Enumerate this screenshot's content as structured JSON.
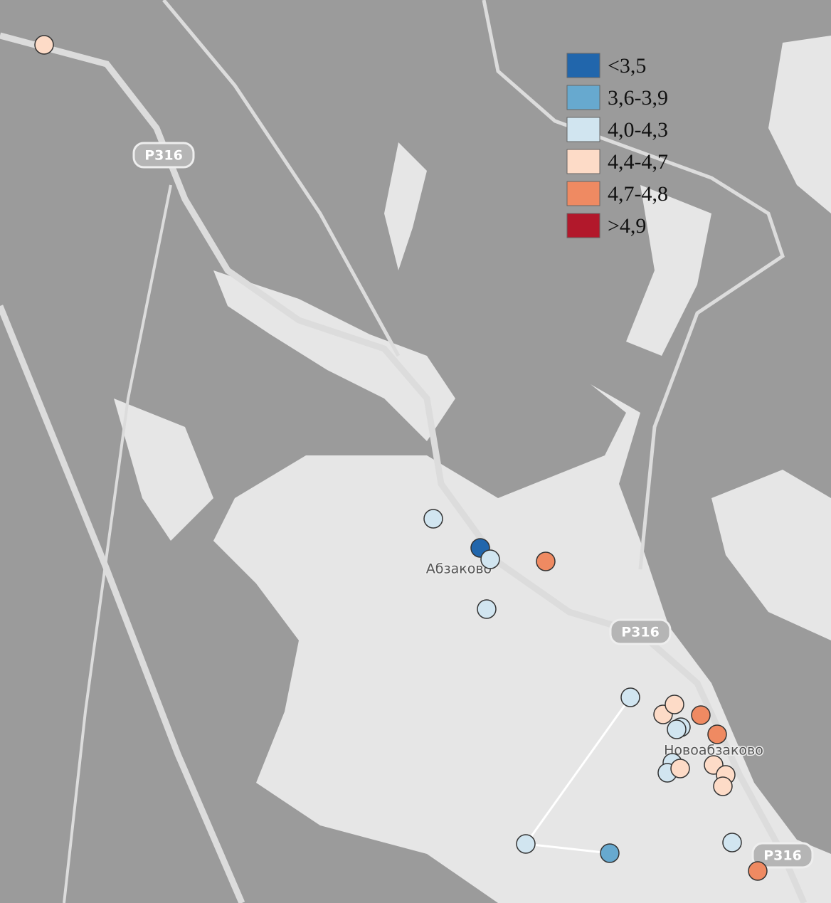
{
  "legend": {
    "items": [
      {
        "label": "<3,5",
        "color": "#2166ac"
      },
      {
        "label": "3,6-3,9",
        "color": "#67a9cf"
      },
      {
        "label": "4,0-4,3",
        "color": "#d1e5f0"
      },
      {
        "label": "4,4-4,7",
        "color": "#fddbc7"
      },
      {
        "label": "4,7-4,8",
        "color": "#ef8a62"
      },
      {
        "label": ">4,9",
        "color": "#b2182b"
      }
    ]
  },
  "places": [
    "Абзаково",
    "Новоабзаково"
  ],
  "roads": [
    "Р316",
    "Р316",
    "Р316"
  ]
}
